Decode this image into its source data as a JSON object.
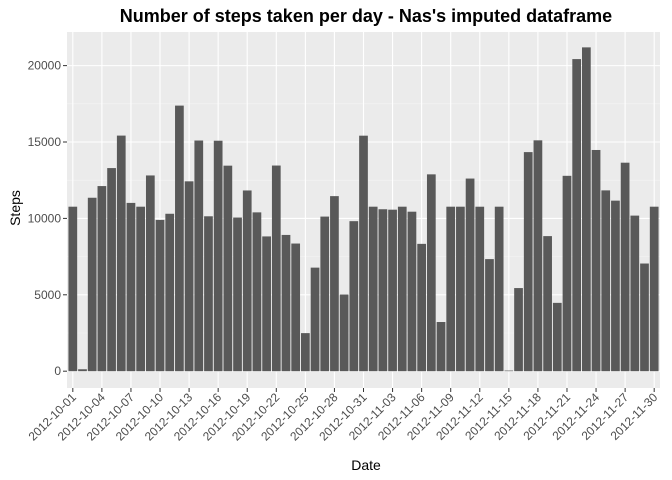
{
  "chart_data": {
    "type": "bar",
    "title": "Number of steps taken per day - Nas's imputed dataframe",
    "xlabel": "Date",
    "ylabel": "Steps",
    "ylim": [
      -1100,
      22200
    ],
    "yticks": [
      0,
      5000,
      10000,
      15000,
      20000
    ],
    "ytick_labels": [
      "0",
      "5000",
      "10000",
      "15000",
      "20000"
    ],
    "xtick_labels": [
      "2012-10-01",
      "2012-10-04",
      "2012-10-07",
      "2012-10-10",
      "2012-10-13",
      "2012-10-16",
      "2012-10-19",
      "2012-10-22",
      "2012-10-25",
      "2012-10-28",
      "2012-10-31",
      "2012-11-03",
      "2012-11-06",
      "2012-11-09",
      "2012-11-12",
      "2012-11-15",
      "2012-11-18",
      "2012-11-21",
      "2012-11-24",
      "2012-11-27",
      "2012-11-30"
    ],
    "categories": [
      "2012-10-01",
      "2012-10-02",
      "2012-10-03",
      "2012-10-04",
      "2012-10-05",
      "2012-10-06",
      "2012-10-07",
      "2012-10-08",
      "2012-10-09",
      "2012-10-10",
      "2012-10-11",
      "2012-10-12",
      "2012-10-13",
      "2012-10-14",
      "2012-10-15",
      "2012-10-16",
      "2012-10-17",
      "2012-10-18",
      "2012-10-19",
      "2012-10-20",
      "2012-10-21",
      "2012-10-22",
      "2012-10-23",
      "2012-10-24",
      "2012-10-25",
      "2012-10-26",
      "2012-10-27",
      "2012-10-28",
      "2012-10-29",
      "2012-10-30",
      "2012-10-31",
      "2012-11-01",
      "2012-11-02",
      "2012-11-03",
      "2012-11-04",
      "2012-11-05",
      "2012-11-06",
      "2012-11-07",
      "2012-11-08",
      "2012-11-09",
      "2012-11-10",
      "2012-11-11",
      "2012-11-12",
      "2012-11-13",
      "2012-11-14",
      "2012-11-15",
      "2012-11-16",
      "2012-11-17",
      "2012-11-18",
      "2012-11-19",
      "2012-11-20",
      "2012-11-21",
      "2012-11-22",
      "2012-11-23",
      "2012-11-24",
      "2012-11-25",
      "2012-11-26",
      "2012-11-27",
      "2012-11-28",
      "2012-11-29",
      "2012-11-30"
    ],
    "values": [
      10766,
      126,
      11352,
      12116,
      13294,
      15420,
      11015,
      10766,
      12811,
      9900,
      10304,
      17382,
      12426,
      15098,
      10139,
      15084,
      13452,
      10056,
      11829,
      10395,
      8821,
      13460,
      8918,
      8355,
      2492,
      6778,
      10119,
      11458,
      5018,
      9819,
      15414,
      10766,
      10600,
      10571,
      10766,
      10439,
      8334,
      12883,
      3219,
      10766,
      10766,
      12608,
      10765,
      7336,
      10766,
      41,
      5441,
      14339,
      15110,
      8841,
      4472,
      12787,
      20427,
      21194,
      14478,
      11834,
      11162,
      13646,
      10183,
      7047,
      10766
    ],
    "colors": {
      "panel": "#ebebeb",
      "grid_major": "#ffffff",
      "grid_minor": "#f4f4f4",
      "bar": "#595959",
      "tick_text": "#4d4d4d"
    },
    "grid": true,
    "legend": "none"
  }
}
